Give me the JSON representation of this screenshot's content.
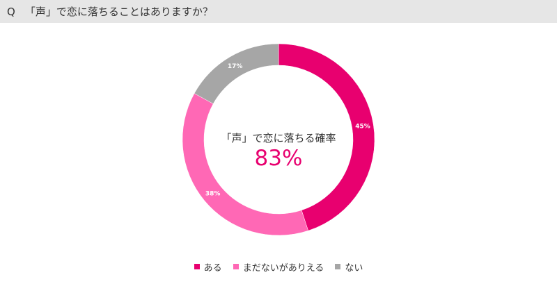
{
  "question": {
    "prefix": "Q",
    "text": "「声」で恋に落ちることはありますか？"
  },
  "chart_data": {
    "type": "pie",
    "variant": "donut",
    "categories": [
      "ある",
      "まだないがありえる",
      "ない"
    ],
    "values": [
      45,
      38,
      17
    ],
    "value_labels": [
      "45%",
      "38%",
      "17%"
    ],
    "colors": [
      "#e8006f",
      "#ff68b5",
      "#a6a6a6"
    ],
    "center": {
      "caption": "「声」で恋に落ちる確率",
      "value": "83%"
    },
    "legend_position": "bottom"
  }
}
